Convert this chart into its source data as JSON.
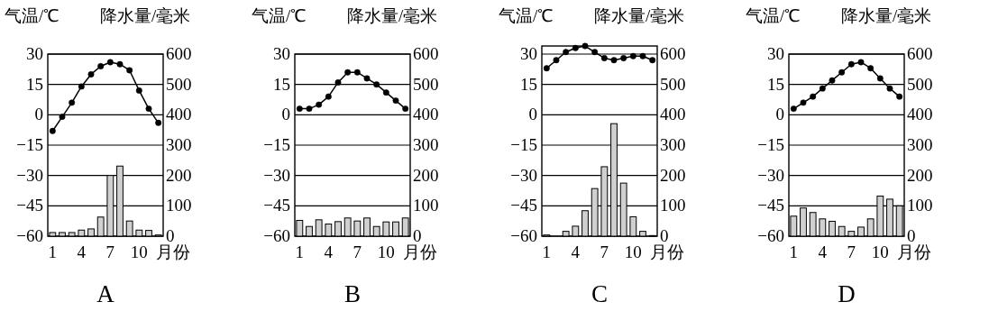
{
  "chart_data": [
    {
      "type": "bar",
      "title": "A",
      "xlabel": "月份",
      "ylabel": "气温/℃",
      "y2label": "降水量/毫米",
      "categories": [
        "1",
        null,
        null,
        "4",
        null,
        null,
        "7",
        null,
        null,
        "10",
        null,
        null
      ],
      "ylim": [
        -60,
        30
      ],
      "yticks": [
        -60,
        -45,
        -30,
        -15,
        0,
        15,
        30
      ],
      "y2lim": [
        0,
        600
      ],
      "y2ticks": [
        0,
        100,
        200,
        300,
        400,
        500,
        600
      ],
      "grid": "y",
      "marker": "circle",
      "series": [
        {
          "axis": "y2",
          "color": "#d0d0d0",
          "values": [
            12,
            12,
            12,
            20,
            24,
            63,
            200,
            231,
            50,
            20,
            19,
            4
          ]
        },
        {
          "type": "line",
          "color": "#000000",
          "values": [
            -8,
            -1,
            6,
            14,
            20,
            24,
            26,
            25,
            22,
            12,
            3,
            -4
          ]
        }
      ]
    },
    {
      "type": "bar",
      "title": "B",
      "xlabel": "月份",
      "ylabel": "气温/℃",
      "y2label": "降水量/毫米",
      "categories": [
        "1",
        null,
        null,
        "4",
        null,
        null,
        "7",
        null,
        null,
        "10",
        null,
        null
      ],
      "ylim": [
        -60,
        30
      ],
      "yticks": [
        -60,
        -45,
        -30,
        -15,
        0,
        15,
        30
      ],
      "y2lim": [
        0,
        600
      ],
      "y2ticks": [
        0,
        100,
        200,
        300,
        400,
        500,
        600
      ],
      "grid": "y",
      "marker": "circle",
      "series": [
        {
          "axis": "y2",
          "color": "#d0d0d0",
          "values": [
            52,
            32,
            54,
            40,
            48,
            60,
            50,
            60,
            32,
            47,
            47,
            60
          ]
        },
        {
          "type": "line",
          "color": "#000000",
          "values": [
            3,
            3,
            5,
            9,
            16,
            21,
            21,
            18,
            15,
            11,
            7,
            3
          ]
        }
      ]
    },
    {
      "type": "bar",
      "title": "C",
      "xlabel": "月份",
      "ylabel": "气温/℃",
      "y2label": "降水量/毫米",
      "categories": [
        "1",
        null,
        null,
        "4",
        null,
        null,
        "7",
        null,
        null,
        "10",
        null,
        null
      ],
      "ylim": [
        -60,
        34
      ],
      "yticks": [
        -60,
        -45,
        -30,
        -15,
        0,
        15,
        30
      ],
      "y2lim": [
        0,
        627
      ],
      "y2ticks": [
        0,
        100,
        200,
        300,
        400,
        500,
        600
      ],
      "grid": "y",
      "marker": "circle",
      "series": [
        {
          "axis": "y2",
          "color": "#d0d0d0",
          "values": [
            4,
            0,
            16,
            33,
            84,
            157,
            229,
            371,
            175,
            64,
            16,
            2
          ]
        },
        {
          "type": "line",
          "color": "#000000",
          "values": [
            23,
            27,
            31,
            33,
            34,
            31,
            28,
            27,
            28,
            29,
            29,
            27
          ]
        }
      ]
    },
    {
      "type": "bar",
      "title": "D",
      "xlabel": "月份",
      "ylabel": "气温/℃",
      "y2label": "降水量/毫米",
      "categories": [
        "1",
        null,
        null,
        "4",
        null,
        null,
        "7",
        null,
        null,
        "10",
        null,
        null
      ],
      "ylim": [
        -60,
        30
      ],
      "yticks": [
        -60,
        -45,
        -30,
        -15,
        0,
        15,
        30
      ],
      "y2lim": [
        0,
        600
      ],
      "y2ticks": [
        0,
        100,
        200,
        300,
        400,
        500,
        600
      ],
      "grid": "y",
      "marker": "circle",
      "series": [
        {
          "axis": "y2",
          "color": "#d0d0d0",
          "values": [
            66,
            93,
            78,
            57,
            49,
            32,
            16,
            30,
            57,
            132,
            122,
            100
          ]
        },
        {
          "type": "line",
          "color": "#000000",
          "values": [
            3,
            6,
            9,
            13,
            17,
            21,
            25,
            26,
            23,
            18,
            13,
            9
          ]
        }
      ]
    }
  ]
}
